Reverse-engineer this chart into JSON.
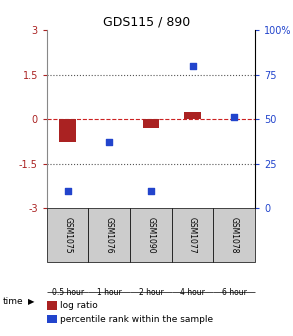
{
  "title": "GDS115 / 890",
  "samples": [
    "GSM1075",
    "GSM1076",
    "GSM1090",
    "GSM1077",
    "GSM1078"
  ],
  "time_labels": [
    "0.5 hour",
    "1 hour",
    "2 hour",
    "4 hour",
    "6 hour"
  ],
  "time_colors": [
    "#ccffcc",
    "#aaeebb",
    "#88dd88",
    "#55cc55",
    "#22aa44"
  ],
  "log_ratio": [
    -0.75,
    0.0,
    -0.3,
    0.25,
    0.0
  ],
  "percentile_rank": [
    10,
    37,
    10,
    80,
    51
  ],
  "ylim_left": [
    -3,
    3
  ],
  "ylim_right": [
    0,
    100
  ],
  "yticks_left": [
    -3,
    -1.5,
    0,
    1.5,
    3
  ],
  "yticks_right": [
    0,
    25,
    50,
    75,
    100
  ],
  "bar_color": "#aa2222",
  "dot_color": "#2244cc",
  "hline_color": "#cc2222",
  "dotted_color": "#555555",
  "bg_color": "#ffffff",
  "legend_log": "log ratio",
  "legend_pct": "percentile rank within the sample",
  "gsm_bg": "#cccccc"
}
